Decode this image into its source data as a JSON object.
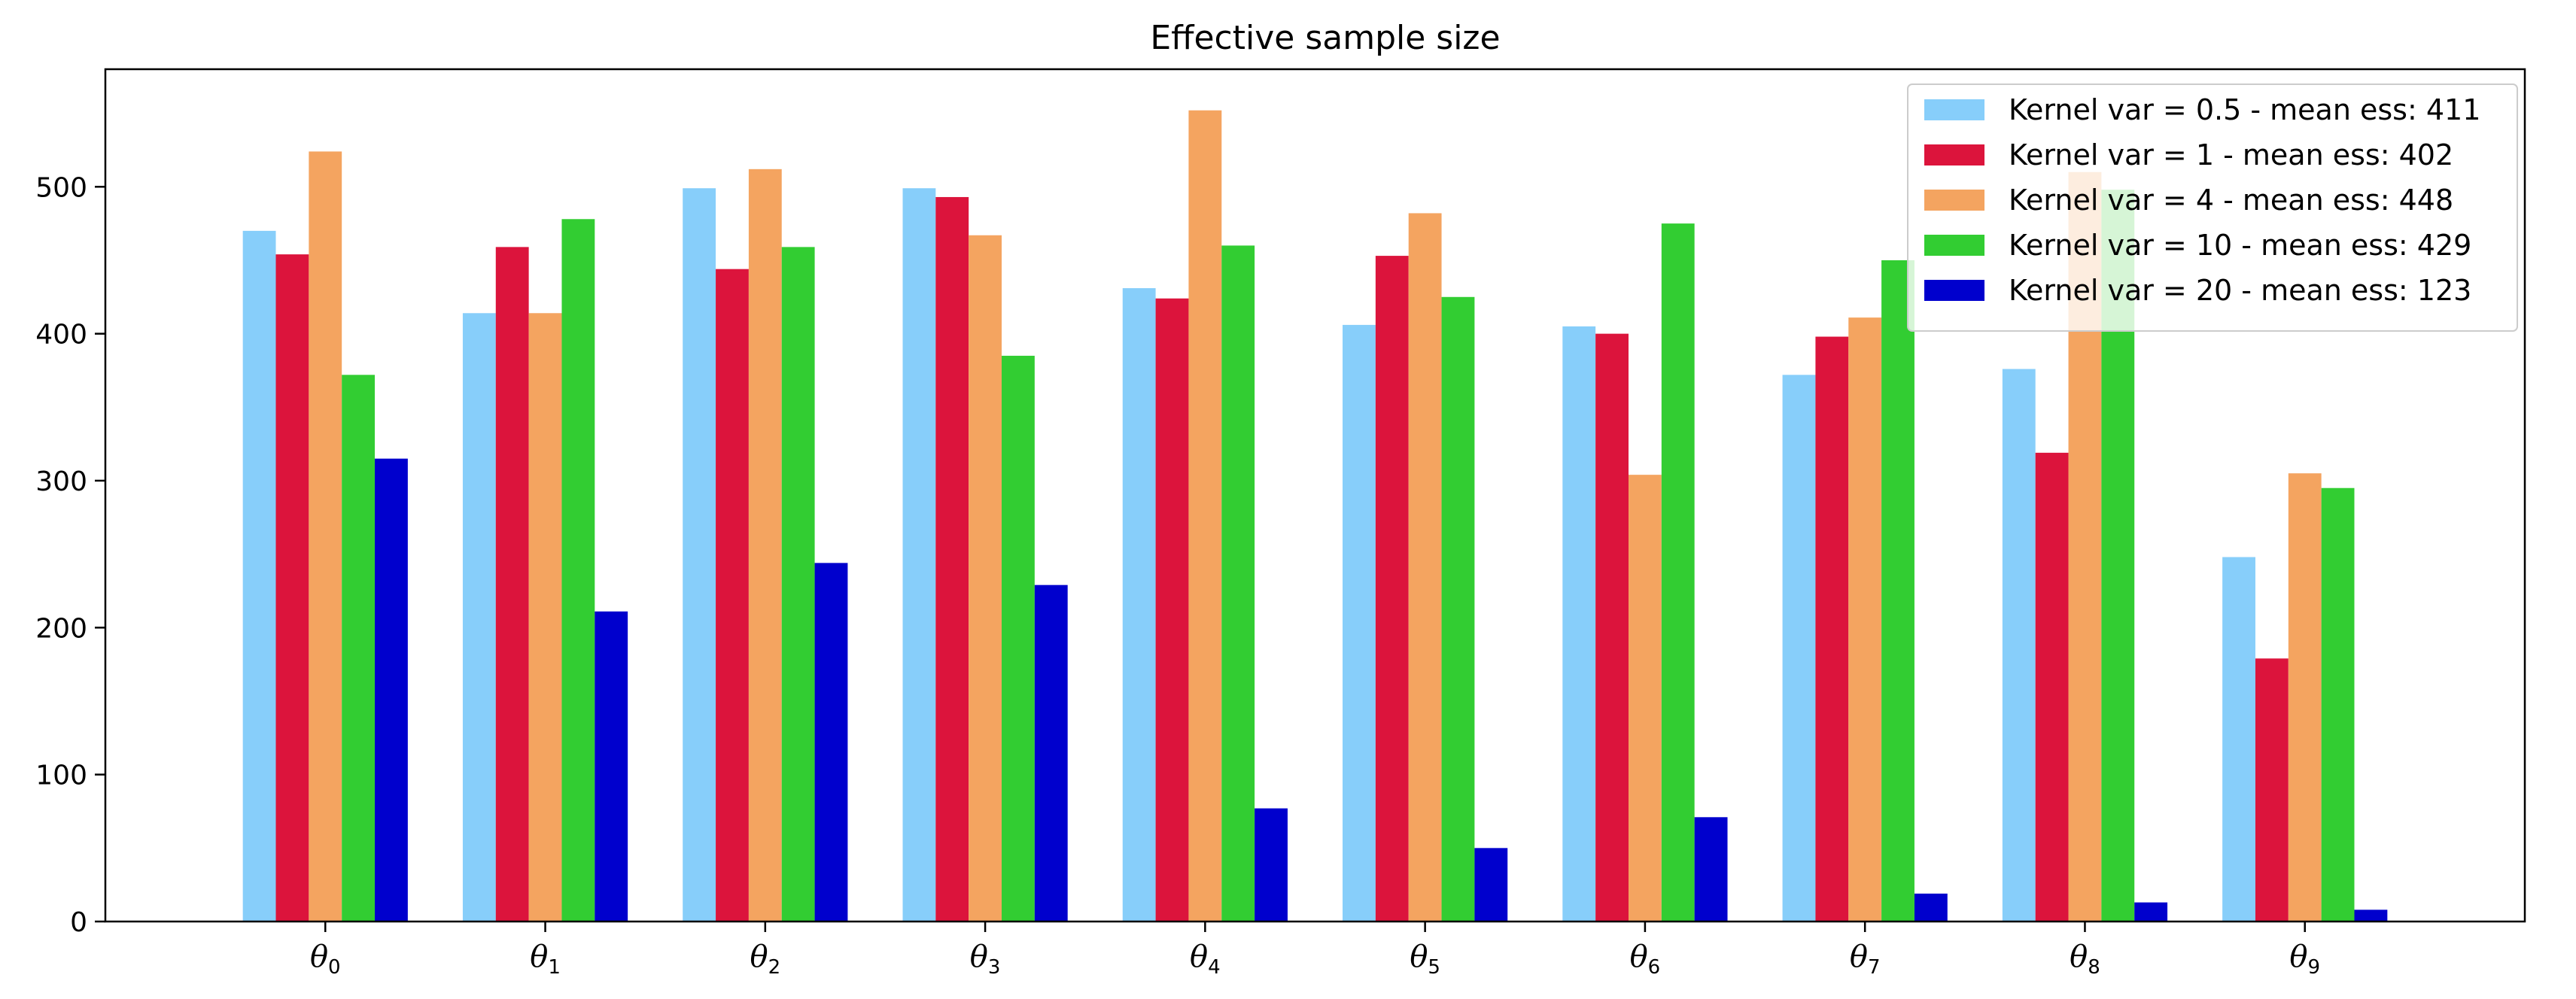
{
  "chart_data": {
    "type": "bar",
    "title": "Effective sample size",
    "xlabel": "",
    "ylabel": "",
    "ylim": [
      0,
      580
    ],
    "yticks": [
      0,
      100,
      200,
      300,
      400,
      500
    ],
    "categories": [
      {
        "symbol": "θ",
        "sub": "0"
      },
      {
        "symbol": "θ",
        "sub": "1"
      },
      {
        "symbol": "θ",
        "sub": "2"
      },
      {
        "symbol": "θ",
        "sub": "3"
      },
      {
        "symbol": "θ",
        "sub": "4"
      },
      {
        "symbol": "θ",
        "sub": "5"
      },
      {
        "symbol": "θ",
        "sub": "6"
      },
      {
        "symbol": "θ",
        "sub": "7"
      },
      {
        "symbol": "θ",
        "sub": "8"
      },
      {
        "symbol": "θ",
        "sub": "9"
      }
    ],
    "series": [
      {
        "name": "Kernel var = 0.5 - mean ess: 411",
        "color": "#87CEFA",
        "values": [
          470,
          414,
          499,
          499,
          431,
          406,
          405,
          372,
          376,
          248
        ]
      },
      {
        "name": "Kernel var = 1 - mean ess: 402",
        "color": "#DC143C",
        "values": [
          454,
          459,
          444,
          493,
          424,
          453,
          400,
          398,
          319,
          179
        ]
      },
      {
        "name": "Kernel var = 4 - mean ess: 448",
        "color": "#F4A460",
        "values": [
          524,
          414,
          512,
          467,
          552,
          482,
          304,
          411,
          510,
          305
        ]
      },
      {
        "name": "Kernel var = 10 - mean ess: 429",
        "color": "#32CD32",
        "values": [
          372,
          478,
          459,
          385,
          460,
          425,
          475,
          450,
          498,
          295
        ]
      },
      {
        "name": "Kernel var = 20 - mean ess: 123",
        "color": "#0000CD",
        "values": [
          315,
          211,
          244,
          229,
          77,
          50,
          71,
          19,
          13,
          8
        ]
      }
    ],
    "grid": false,
    "legend_position": "top-right"
  }
}
